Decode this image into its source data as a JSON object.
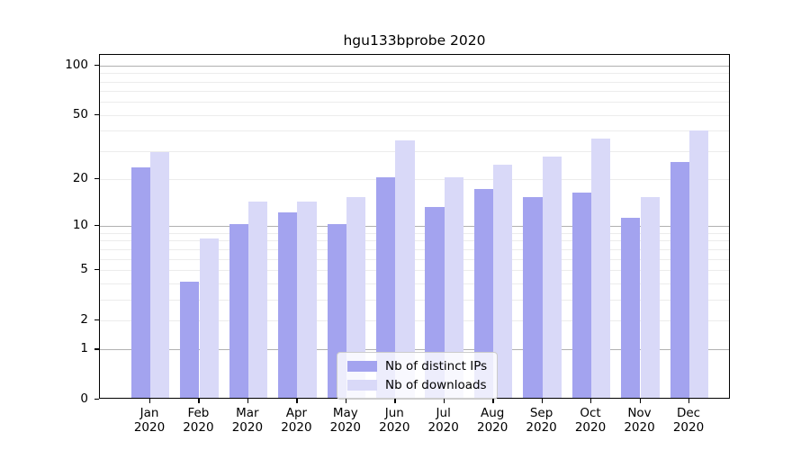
{
  "title": "hgu133bprobe 2020",
  "colors": {
    "ips_bar": "#a3a3ef",
    "downloads_bar": "#d9d9f8",
    "axis": "#000000",
    "grid_major": "#b0b0b0",
    "grid_minor": "#ececec",
    "legend_border": "#cccccc"
  },
  "legend": {
    "items": [
      {
        "label": "Nb of distinct IPs",
        "color_key": "ips_bar"
      },
      {
        "label": "Nb of downloads",
        "color_key": "downloads_bar"
      }
    ]
  },
  "chart_data": {
    "type": "bar",
    "title": "hgu133bprobe 2020",
    "categories": [
      "Jan 2020",
      "Feb 2020",
      "Mar 2020",
      "Apr 2020",
      "May 2020",
      "Jun 2020",
      "Jul 2020",
      "Aug 2020",
      "Sep 2020",
      "Oct 2020",
      "Nov 2020",
      "Dec 2020"
    ],
    "series": [
      {
        "name": "Nb of distinct IPs",
        "values": [
          23,
          4,
          10,
          12,
          10,
          20,
          13,
          17,
          15,
          16,
          11,
          25
        ]
      },
      {
        "name": "Nb of downloads",
        "values": [
          29,
          8,
          14,
          14,
          15,
          34,
          20,
          24,
          27,
          35,
          15,
          39
        ]
      }
    ],
    "xlabel": "",
    "ylabel": "",
    "yscale": "log1p",
    "ylim": [
      0,
      115
    ],
    "yticks": [
      0,
      1,
      2,
      5,
      10,
      20,
      50,
      100
    ],
    "yticks_minor": [
      3,
      4,
      6,
      7,
      8,
      9,
      30,
      40,
      60,
      70,
      80,
      90
    ],
    "grid": true,
    "legend_position": "lower center"
  }
}
